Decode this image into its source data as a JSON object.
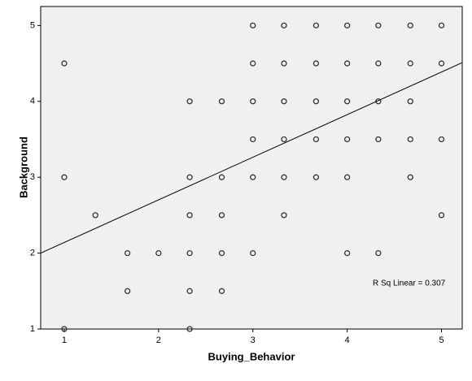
{
  "chart_data": {
    "type": "scatter",
    "x_label": "Buying_Behavior",
    "y_label": "Background",
    "annotation": "R Sq Linear = 0.307",
    "x": [
      1,
      1,
      1,
      1.33,
      1.67,
      1.67,
      2,
      2.33,
      2.33,
      2.33,
      2.33,
      2.33,
      2.33,
      2.67,
      2.67,
      2.67,
      2.67,
      2.67,
      3,
      3,
      3,
      3,
      3,
      3,
      3.33,
      3.33,
      3.33,
      3.33,
      3.33,
      3.33,
      3.67,
      3.67,
      3.67,
      3.67,
      3.67,
      4,
      4,
      4,
      4,
      4,
      4,
      4.33,
      4.33,
      4.33,
      4.33,
      4.33,
      4.67,
      4.67,
      4.67,
      4.67,
      4.67,
      5,
      5,
      5,
      5
    ],
    "y": [
      4.5,
      3,
      1,
      2.5,
      2,
      1.5,
      2,
      4,
      3,
      2.5,
      2,
      1.5,
      1,
      4,
      3,
      2.5,
      2,
      1.5,
      5,
      4.5,
      4,
      3.5,
      3,
      2,
      5,
      4.5,
      4,
      3.5,
      3,
      2.5,
      5,
      4.5,
      4,
      3.5,
      3,
      5,
      4.5,
      4,
      3.5,
      3,
      2,
      5,
      4.5,
      4,
      3.5,
      2,
      5,
      4.5,
      4,
      3.5,
      3,
      5,
      4.5,
      3.5,
      2.5
    ],
    "color": "#333333",
    "fit_line": {
      "x": [
        0.75,
        5.22
      ],
      "y": [
        2.0,
        4.51
      ]
    },
    "xlim": [
      0.75,
      5.22
    ],
    "ylim": [
      1,
      5.25
    ],
    "xticks": [
      1,
      2,
      3,
      4,
      5
    ],
    "yticks": [
      1,
      2,
      3,
      4,
      5
    ]
  }
}
